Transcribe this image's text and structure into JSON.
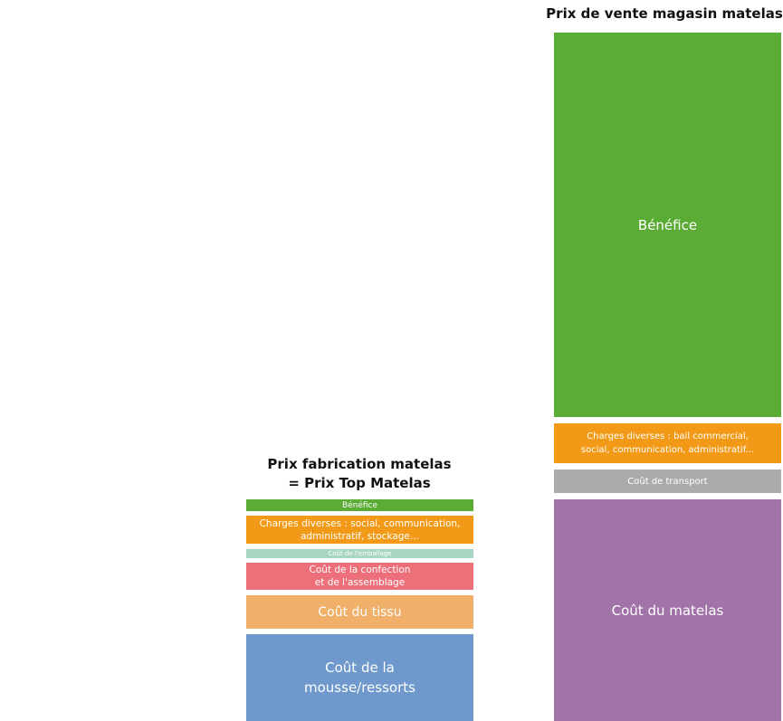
{
  "left_stack": {
    "title": "Prix fabrication matelas\n= Prix Top Matelas",
    "segments": [
      {
        "label": "Bénéfice",
        "color": "#5aac34"
      },
      {
        "label": "Charges diverses : social, communication,\nadministratif, stockage...",
        "color": "#f29a17"
      },
      {
        "label": "Coût de l'emballage",
        "color": "#a9d6c3"
      },
      {
        "label": "Coût de la confection\net de l'assemblage",
        "color": "#ec6f79"
      },
      {
        "label": "Coût du tissu",
        "color": "#f0b06a"
      },
      {
        "label": "Coût de la\nmousse/ressorts",
        "color": "#6f99cc"
      }
    ]
  },
  "right_stack": {
    "title": "Prix de vente magasin matelas",
    "segments": [
      {
        "label": "Bénéfice",
        "color": "#5aac34"
      },
      {
        "label": "Charges diverses : bail commercial,\nsocial, communication, administratif...",
        "color": "#f29a17"
      },
      {
        "label": "Coût de transport",
        "color": "#ababab"
      },
      {
        "label": "Coût du matelas",
        "color": "#a173a8"
      }
    ]
  }
}
